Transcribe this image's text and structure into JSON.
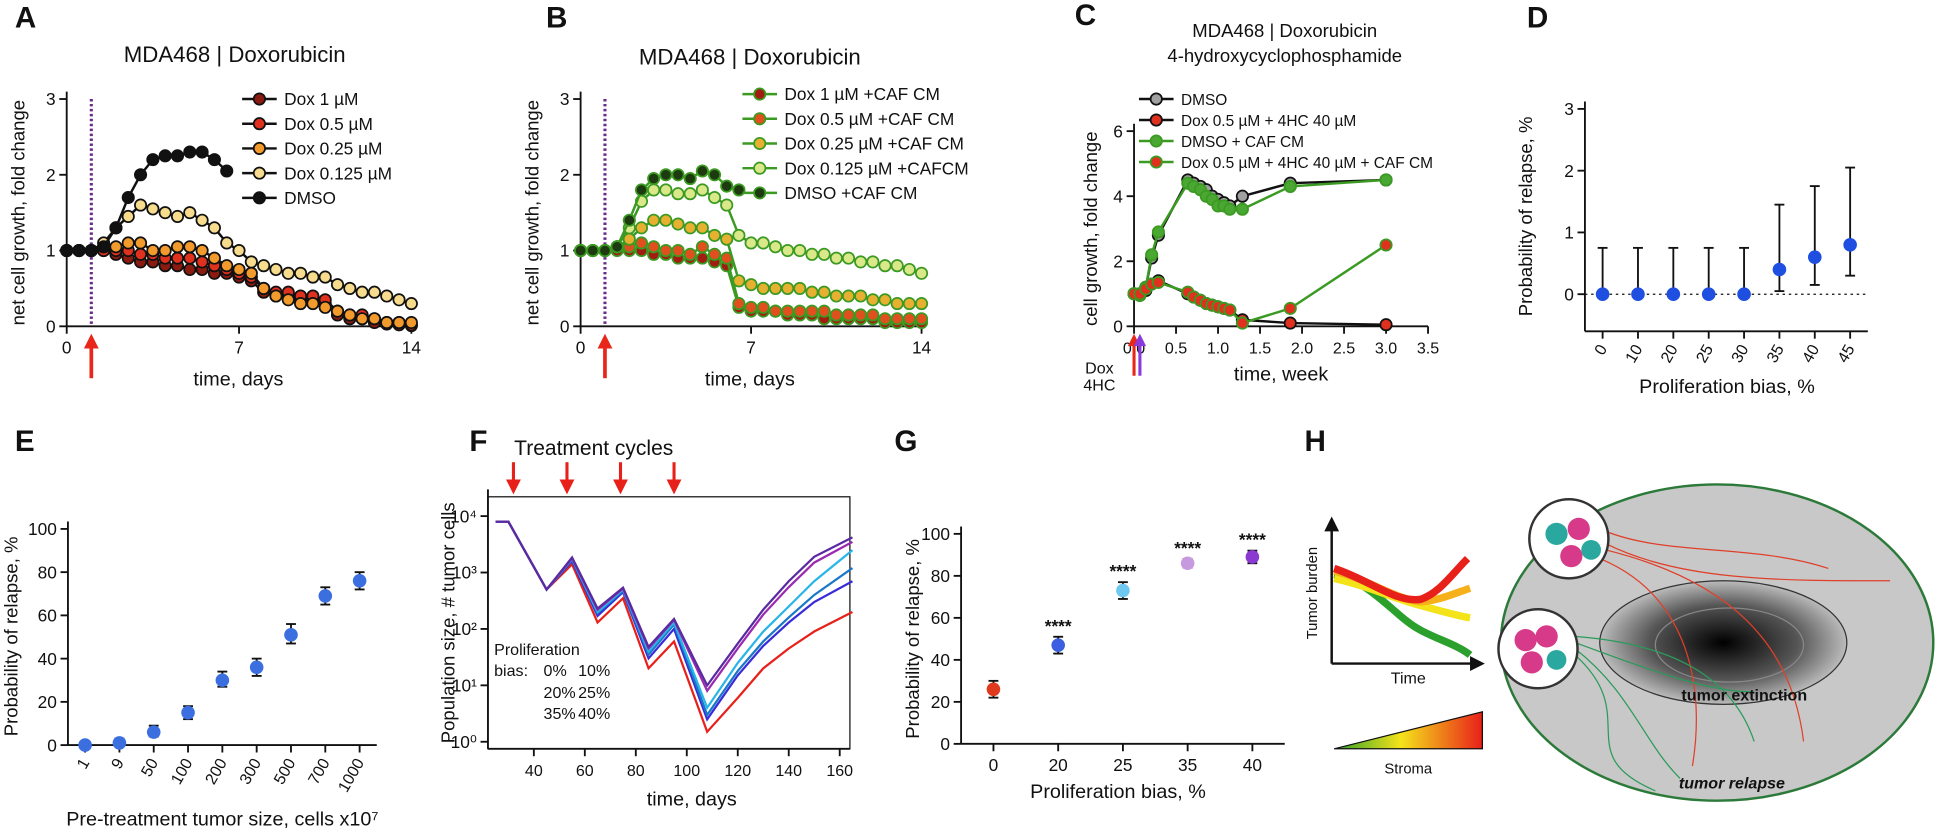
{
  "chart_data": [
    {
      "panel": "A",
      "type": "line",
      "title": "MDA468 |  Doxorubicin",
      "x_label": "time, days",
      "y_label": "net cell growth, fold change",
      "x": [
        0,
        0.5,
        1,
        1.5,
        2,
        2.5,
        3,
        3.5,
        4,
        4.5,
        5,
        5.5,
        6,
        6.5,
        7,
        7.5,
        8,
        8.5,
        9,
        9.5,
        10,
        10.5,
        11,
        11.5,
        12,
        12.5,
        13,
        13.5,
        14
      ],
      "xlim": [
        0,
        14
      ],
      "xticks": [
        0,
        7,
        14
      ],
      "ylim": [
        0,
        3
      ],
      "yticks": [
        0,
        1,
        2,
        3
      ],
      "markers": true,
      "treatment_day": 1,
      "series": [
        {
          "name": "Dox 1 µM",
          "color": "#8b1a10",
          "line": "#111111",
          "values": [
            1,
            1,
            1,
            1,
            0.95,
            0.9,
            0.85,
            0.85,
            0.8,
            0.8,
            0.75,
            0.75,
            0.7,
            0.7,
            0.65,
            0.6,
            0.45,
            0.4,
            0.4,
            0.35,
            0.35,
            0.3,
            0.15,
            0.1,
            0.1,
            0.05,
            0.03,
            0.02,
            0.01
          ]
        },
        {
          "name": "Dox 0.5 µM",
          "color": "#e0301e",
          "line": "#111111",
          "values": [
            1,
            1,
            1,
            1,
            1,
            1,
            0.95,
            0.95,
            0.9,
            0.9,
            0.9,
            0.85,
            0.8,
            0.75,
            0.7,
            0.65,
            0.5,
            0.45,
            0.45,
            0.4,
            0.4,
            0.35,
            0.2,
            0.15,
            0.15,
            0.1,
            0.05,
            0.05,
            0.02
          ]
        },
        {
          "name": "Dox 0.25 µM",
          "color": "#f39a2c",
          "line": "#111111",
          "values": [
            1,
            1,
            1,
            1.05,
            1.05,
            1.1,
            1.1,
            1.0,
            1.0,
            1.05,
            1.05,
            1.0,
            0.9,
            0.8,
            0.75,
            0.7,
            0.5,
            0.4,
            0.35,
            0.3,
            0.3,
            0.25,
            0.2,
            0.15,
            0.1,
            0.1,
            0.05,
            0.05,
            0.05
          ]
        },
        {
          "name": "Dox 0.125 µM",
          "color": "#f7dc8e",
          "line": "#111111",
          "values": [
            1,
            1,
            1,
            1.1,
            1.3,
            1.45,
            1.6,
            1.55,
            1.5,
            1.45,
            1.5,
            1.4,
            1.3,
            1.1,
            1.0,
            0.85,
            0.8,
            0.75,
            0.7,
            0.7,
            0.65,
            0.65,
            0.55,
            0.5,
            0.45,
            0.45,
            0.4,
            0.35,
            0.3
          ]
        },
        {
          "name": "DMSO",
          "color": "#111111",
          "line": "#111111",
          "values": [
            1,
            1,
            1,
            1.05,
            1.3,
            1.7,
            2.0,
            2.2,
            2.25,
            2.25,
            2.3,
            2.3,
            2.2,
            2.05,
            null,
            null,
            null,
            null,
            null,
            null,
            null,
            null,
            null,
            null,
            null,
            null,
            null,
            null,
            null
          ]
        }
      ]
    },
    {
      "panel": "B",
      "type": "line",
      "title": "MDA468 | Doxorubicin",
      "x_label": "time, days",
      "y_label": "net cell growth, fold change",
      "x": [
        0,
        0.5,
        1,
        1.5,
        2,
        2.5,
        3,
        3.5,
        4,
        4.5,
        5,
        5.5,
        6,
        6.5,
        7,
        7.5,
        8,
        8.5,
        9,
        9.5,
        10,
        10.5,
        11,
        11.5,
        12,
        12.5,
        13,
        13.5,
        14
      ],
      "xlim": [
        0,
        14
      ],
      "xticks": [
        0,
        7,
        14
      ],
      "ylim": [
        0,
        3
      ],
      "yticks": [
        0,
        1,
        2,
        3
      ],
      "markers": true,
      "treatment_day": 1,
      "series": [
        {
          "name": "Dox 1 µM +CAF CM",
          "color": "#a11d12",
          "line": "#3b9a22",
          "values": [
            1,
            1,
            1,
            1,
            1.0,
            1.0,
            0.95,
            0.95,
            0.9,
            0.9,
            0.9,
            0.85,
            0.8,
            0.25,
            0.2,
            0.2,
            0.2,
            0.15,
            0.15,
            0.15,
            0.1,
            0.1,
            0.1,
            0.1,
            0.1,
            0.05,
            0.05,
            0.05,
            0.05
          ]
        },
        {
          "name": "Dox 0.5 µM +CAF CM",
          "color": "#e0501e",
          "line": "#3b9a22",
          "values": [
            1,
            1,
            1,
            1.05,
            1.05,
            1.1,
            1.05,
            1.0,
            1.0,
            0.95,
            1.05,
            0.95,
            0.9,
            0.3,
            0.25,
            0.25,
            0.2,
            0.2,
            0.2,
            0.2,
            0.2,
            0.15,
            0.15,
            0.15,
            0.15,
            0.1,
            0.1,
            0.1,
            0.1
          ]
        },
        {
          "name": "Dox 0.25 µM +CAF CM",
          "color": "#e8b030",
          "line": "#3b9a22",
          "values": [
            1,
            1,
            1,
            1.05,
            1.15,
            1.3,
            1.4,
            1.4,
            1.35,
            1.3,
            1.3,
            1.2,
            1.15,
            0.6,
            0.55,
            0.5,
            0.5,
            0.5,
            0.5,
            0.45,
            0.45,
            0.4,
            0.4,
            0.4,
            0.35,
            0.35,
            0.3,
            0.3,
            0.3
          ]
        },
        {
          "name": "Dox 0.125 µM +CAFCM",
          "color": "#dbe88a",
          "line": "#3b9a22",
          "values": [
            1,
            1,
            1,
            1.05,
            1.3,
            1.65,
            1.8,
            1.8,
            1.75,
            1.75,
            1.8,
            1.7,
            1.6,
            1.2,
            1.1,
            1.1,
            1.05,
            1.0,
            1.0,
            0.95,
            0.95,
            0.9,
            0.9,
            0.85,
            0.85,
            0.8,
            0.8,
            0.75,
            0.7
          ]
        },
        {
          "name": "DMSO +CAF CM",
          "color": "#1e3a10",
          "line": "#3b9a22",
          "values": [
            1,
            1,
            1,
            1.05,
            1.4,
            1.8,
            1.95,
            2.0,
            2.0,
            1.95,
            2.05,
            2.0,
            1.85,
            1.8,
            null,
            null,
            null,
            null,
            null,
            null,
            null,
            null,
            null,
            null,
            null,
            null,
            null,
            null,
            null
          ]
        }
      ]
    },
    {
      "panel": "C",
      "type": "line",
      "title": [
        "MDA468 | Doxorubicin",
        "4-hydroxycyclophosphamide"
      ],
      "x_label": "time, week",
      "y_label": "cell growth, fold change",
      "x": [
        0,
        0.07,
        0.14,
        0.21,
        0.29,
        0.64,
        0.71,
        0.79,
        0.86,
        0.93,
        1.0,
        1.07,
        1.14,
        1.29,
        1.86,
        3.0
      ],
      "xlim": [
        0,
        3.5
      ],
      "xticks": [
        {
          "value": 0,
          "label": "0.0"
        },
        0.5,
        {
          "value": 1,
          "label": "1.0"
        },
        1.5,
        {
          "value": 2,
          "label": "2.0"
        },
        2.5,
        {
          "value": 3,
          "label": "3.0"
        },
        3.5
      ],
      "ylim": [
        0,
        6
      ],
      "yticks": [
        0,
        2,
        4,
        6
      ],
      "markers": true,
      "annotations": [
        {
          "text": "Dox",
          "color": "#e8261a",
          "x": 0
        },
        {
          "text": "4HC",
          "color": "#8a3adb",
          "x": 0.07
        }
      ],
      "series": [
        {
          "name": "DMSO",
          "color": "#a0a0a0",
          "line": "#111111",
          "values": [
            1,
            0.95,
            1.2,
            2.1,
            2.8,
            4.5,
            4.4,
            4.3,
            4.2,
            4.0,
            3.9,
            3.8,
            3.7,
            4.0,
            4.4,
            4.5
          ]
        },
        {
          "name": "Dox 0.5 µM + 4HC 40 µM",
          "color": "#e0301e",
          "line": "#111111",
          "values": [
            1,
            1.0,
            1.1,
            1.3,
            1.4,
            1.0,
            0.9,
            0.8,
            0.7,
            0.65,
            0.6,
            0.55,
            0.5,
            0.2,
            0.1,
            0.05
          ]
        },
        {
          "name": "DMSO + CAF CM",
          "color": "#4aa832",
          "line": "#3b9a22",
          "values": [
            1,
            0.95,
            1.2,
            2.2,
            2.9,
            4.4,
            4.3,
            4.2,
            4.0,
            3.9,
            3.7,
            3.7,
            3.6,
            3.6,
            4.3,
            4.5
          ]
        },
        {
          "name": "Dox 0.5 µM + 4HC 40 µM + CAF CM",
          "color": "#e0301e",
          "line": "#3b9a22",
          "values": [
            1,
            1.0,
            1.15,
            1.3,
            1.35,
            1.05,
            0.9,
            0.8,
            0.7,
            0.65,
            0.6,
            0.55,
            0.5,
            0.1,
            0.55,
            2.5
          ]
        }
      ]
    },
    {
      "panel": "D",
      "type": "scatter",
      "x_label": "Proliferation bias, %",
      "y_label": "Probability of relapse, %",
      "categories": [
        "0",
        "10",
        "20",
        "25",
        "30",
        "35",
        "40",
        "45"
      ],
      "values": [
        0,
        0,
        0,
        0,
        0,
        0.4,
        0.6,
        0.8
      ],
      "low": [
        0,
        0,
        0,
        0,
        0,
        0.05,
        0.15,
        0.3
      ],
      "high": [
        0.75,
        0.75,
        0.75,
        0.75,
        0.75,
        1.45,
        1.75,
        2.05
      ],
      "color": "#1f4fe0",
      "ylim": [
        -0.6,
        3
      ],
      "yticks": [
        0,
        1,
        2,
        3
      ],
      "reference_line": 0
    },
    {
      "panel": "E",
      "type": "scatter",
      "x_label": "Pre-treatment tumor size, cells x10⁷",
      "y_label": "Probability of relapse, %",
      "categories": [
        "1",
        "9",
        "50",
        "100",
        "200",
        "300",
        "500",
        "700",
        "1000"
      ],
      "values": [
        0,
        1,
        6,
        15,
        30,
        36,
        51,
        69,
        76
      ],
      "low": [
        0,
        0,
        4,
        12,
        27,
        32,
        47,
        65,
        72
      ],
      "high": [
        1,
        3,
        9,
        18,
        34,
        40,
        56,
        73,
        80
      ],
      "color": "#3b6fe0",
      "ylim": [
        0,
        100
      ],
      "yticks": [
        0,
        20,
        40,
        60,
        80,
        100
      ]
    },
    {
      "panel": "F",
      "type": "line",
      "x_label": "time, days",
      "y_label": "Population size, # tumor cells",
      "log_y": true,
      "annotation": "Treatment cycles",
      "treatment_days": [
        32,
        53,
        74,
        95
      ],
      "legend_title": [
        "Proliferation",
        "bias:"
      ],
      "x": [
        25,
        30,
        45,
        55,
        65,
        75,
        85,
        95,
        108,
        120,
        130,
        140,
        150,
        165
      ],
      "xlim": [
        22,
        164
      ],
      "xticks": [
        40,
        60,
        80,
        100,
        120,
        140,
        160
      ],
      "ylim": [
        0.75,
        22000
      ],
      "yticks": [
        {
          "value": 1,
          "label": "10⁰"
        },
        {
          "value": 10,
          "label": "10¹"
        },
        {
          "value": 100,
          "label": "10²"
        },
        {
          "value": 1000,
          "label": "10³"
        },
        {
          "value": 10000,
          "label": "10⁴"
        }
      ],
      "series": [
        {
          "name": "0%",
          "color": "#e8201a",
          "values": [
            8000,
            8000,
            500,
            1400,
            130,
            350,
            20,
            60,
            1.5,
            6,
            20,
            45,
            90,
            200
          ]
        },
        {
          "name": "10%",
          "color": "#3a2bd8",
          "values": [
            8000,
            8000,
            500,
            1600,
            170,
            450,
            30,
            100,
            2.5,
            15,
            50,
            130,
            300,
            700
          ]
        },
        {
          "name": "20%",
          "color": "#1a78c8",
          "values": [
            8000,
            8000,
            500,
            1700,
            190,
            480,
            35,
            120,
            3,
            18,
            60,
            160,
            400,
            1200
          ]
        },
        {
          "name": "25%",
          "color": "#2ab5e8",
          "values": [
            8000,
            8000,
            500,
            1750,
            200,
            500,
            40,
            130,
            4,
            25,
            90,
            250,
            700,
            2500
          ]
        },
        {
          "name": "35%",
          "color": "#9a2ab0",
          "values": [
            8000,
            8000,
            500,
            1800,
            220,
            520,
            45,
            145,
            8,
            45,
            180,
            550,
            1500,
            3500
          ]
        },
        {
          "name": "40%",
          "color": "#5a2aa0",
          "values": [
            8000,
            8000,
            500,
            1850,
            230,
            540,
            48,
            150,
            10,
            55,
            220,
            700,
            1900,
            4200
          ]
        }
      ]
    },
    {
      "panel": "G",
      "type": "scatter",
      "x_label": "Proliferation bias, %",
      "y_label": "Probability of relapse, %",
      "categories": [
        "0",
        "20",
        "25",
        "35",
        "40"
      ],
      "values": [
        26,
        47,
        73,
        86,
        89
      ],
      "low": [
        22,
        43,
        69,
        84,
        86
      ],
      "high": [
        30,
        51,
        77,
        88,
        92
      ],
      "colors": [
        "#e03a1e",
        "#3b5fe0",
        "#6ec8f0",
        "#c79ae0",
        "#8a3ad0"
      ],
      "significance": [
        null,
        "****",
        "****",
        "****",
        "****"
      ],
      "ylim": [
        0,
        100
      ],
      "yticks": [
        0,
        20,
        40,
        60,
        80,
        100
      ]
    }
  ],
  "diagram": {
    "panel": "H",
    "y_label": "Tumor burden",
    "x_label": "Time",
    "gradient_label": "Stroma",
    "extinction_label": "tumor extinction",
    "relapse_label": "tumor relapse"
  }
}
